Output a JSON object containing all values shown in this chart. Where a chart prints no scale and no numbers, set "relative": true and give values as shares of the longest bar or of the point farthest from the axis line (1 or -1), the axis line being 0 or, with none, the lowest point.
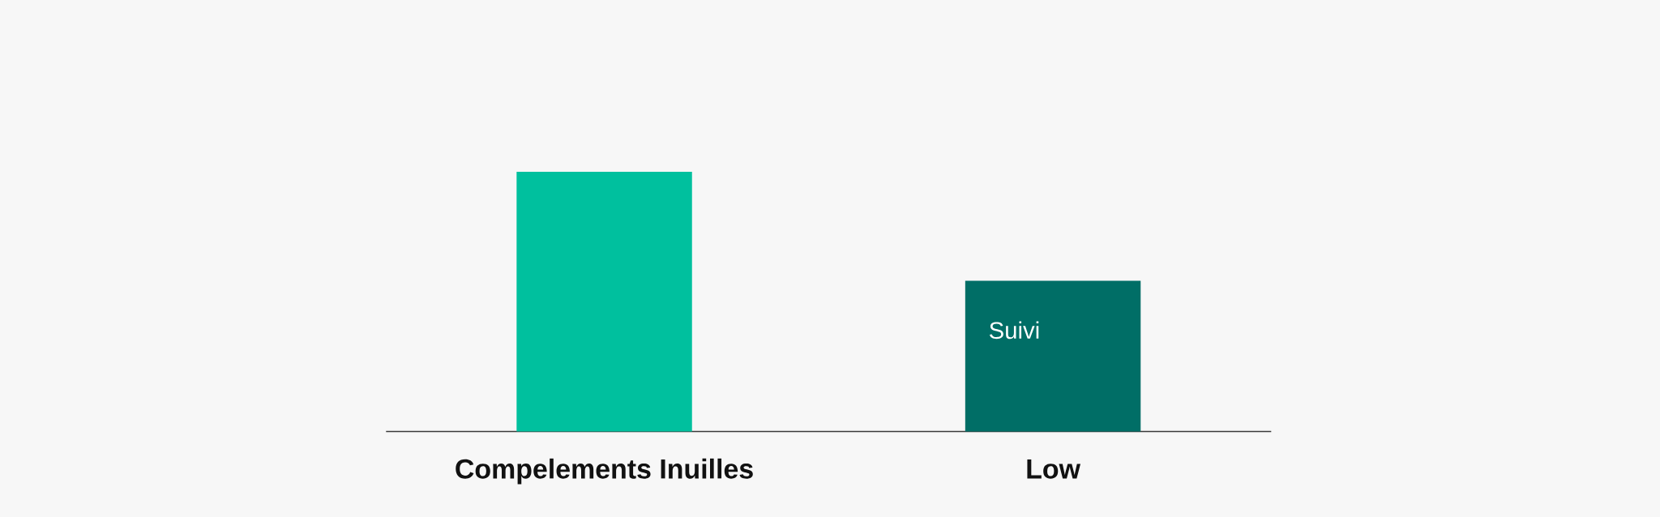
{
  "chart_data": {
    "type": "bar",
    "categories": [
      "Compelements Inuilles",
      "Low"
    ],
    "values": [
      1,
      0.58
    ],
    "colors": [
      "#00c09e",
      "#006e66"
    ],
    "relative": true,
    "annotations": [
      "Suivi"
    ]
  }
}
